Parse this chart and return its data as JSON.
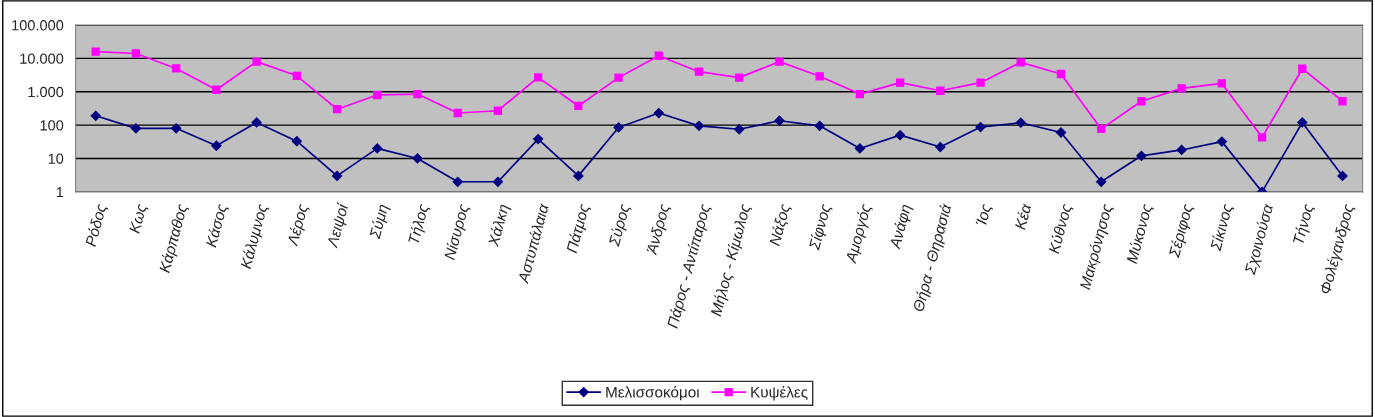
{
  "chart_data": {
    "type": "line",
    "categories": [
      "Ρόδος",
      "Κως",
      "Κάρπαθος",
      "Κάσος",
      "Κάλυμνος",
      "Λέρος",
      "Λειψοί",
      "Σύμη",
      "Τήλος",
      "Νίσυρος",
      "Χάλκη",
      "Αστυπάλαια",
      "Πάτμος",
      "Σύρος",
      "Άνδρος",
      "Πάρος - Αντίπαρος",
      "Μήλος - Κίμωλος",
      "Νάξος",
      "Σίφνος",
      "Αμοργός",
      "Ανάφη",
      "Θήρα - Θηρασιά",
      "Ίος",
      "Κέα",
      "Κύθνος",
      "Μακρόνησος",
      "Μύκονος",
      "Σέριφος",
      "Σίκινος",
      "Σχοινούσα",
      "Τήνος",
      "Φολέγανδρος"
    ],
    "series": [
      {
        "name": "Μελισσοκόμοι",
        "color": "#000080",
        "marker": "diamond",
        "values": [
          190,
          80,
          80,
          24,
          120,
          33,
          3,
          20,
          10,
          2,
          2,
          38,
          3,
          85,
          230,
          95,
          75,
          135,
          95,
          20,
          50,
          22,
          87,
          118,
          60,
          2,
          12,
          18,
          32,
          1,
          120,
          3
        ]
      },
      {
        "name": "Κυψέλες",
        "color": "#ff00ff",
        "marker": "square",
        "values": [
          16000,
          14000,
          5000,
          1150,
          8000,
          3000,
          300,
          800,
          850,
          230,
          270,
          2700,
          375,
          2650,
          12000,
          4000,
          2650,
          8000,
          2900,
          850,
          1870,
          1070,
          1870,
          7600,
          3400,
          77,
          520,
          1260,
          1780,
          43,
          4900,
          520
        ]
      }
    ],
    "log": true,
    "ylim": [
      1,
      100000
    ],
    "yticks": [
      1,
      10,
      100,
      {
        "value": 1000,
        "label": "1.000"
      },
      {
        "value": 10000,
        "label": "10.000"
      },
      {
        "value": 100000,
        "label": "100.000"
      }
    ],
    "grid": "y",
    "legend": "bottom",
    "line_style": "solid"
  }
}
